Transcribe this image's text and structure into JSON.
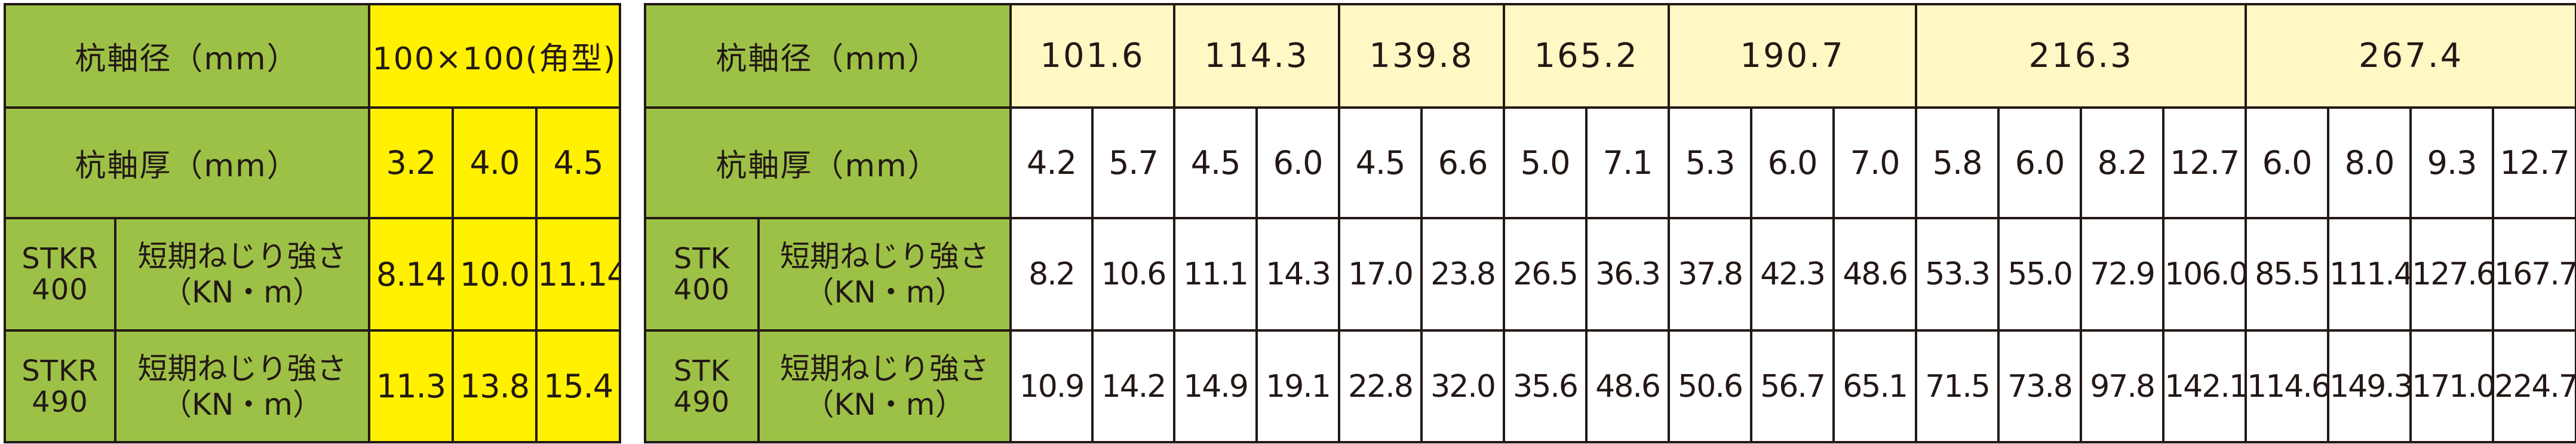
{
  "left_table": {
    "diameter_header": "杭軸径（mm）",
    "diameter_value": "100×100(角型)",
    "thickness_header": "杭軸厚（mm）",
    "thicknesses": [
      "3.2",
      "4.0",
      "4.5"
    ],
    "rows": [
      {
        "grade_line1": "STKR",
        "grade_line2": "400",
        "torsion_line1": "短期ねじり強さ",
        "torsion_line2": "（KN・m）",
        "values": [
          "8.14",
          "10.0",
          "11.14"
        ]
      },
      {
        "grade_line1": "STKR",
        "grade_line2": "490",
        "torsion_line1": "短期ねじり強さ",
        "torsion_line2": "（KN・m）",
        "values": [
          "11.3",
          "13.8",
          "15.4"
        ]
      }
    ]
  },
  "right_table": {
    "diameter_header": "杭軸径（mm）",
    "diameters": [
      "101.6",
      "114.3",
      "139.8",
      "165.2",
      "190.7",
      "216.3",
      "267.4"
    ],
    "thickness_header": "杭軸厚（mm）",
    "thicknesses": [
      "4.2",
      "5.7",
      "4.5",
      "6.0",
      "4.5",
      "6.6",
      "5.0",
      "7.1",
      "5.3",
      "6.0",
      "7.0",
      "5.8",
      "6.0",
      "8.2",
      "12.7",
      "6.0",
      "8.0",
      "9.3",
      "12.7"
    ],
    "rows": [
      {
        "grade_line1": "STK",
        "grade_line2": "400",
        "torsion_line1": "短期ねじり強さ",
        "torsion_line2": "（KN・m）",
        "values": [
          "8.2",
          "10.6",
          "11.1",
          "14.3",
          "17.0",
          "23.8",
          "26.5",
          "36.3",
          "37.8",
          "42.3",
          "48.6",
          "53.3",
          "55.0",
          "72.9",
          "106.0",
          "85.5",
          "111.4",
          "127.6",
          "167.7"
        ]
      },
      {
        "grade_line1": "STK",
        "grade_line2": "490",
        "torsion_line1": "短期ねじり強さ",
        "torsion_line2": "（KN・m）",
        "values": [
          "10.9",
          "14.2",
          "14.9",
          "19.1",
          "22.8",
          "32.0",
          "35.6",
          "48.6",
          "50.6",
          "56.7",
          "65.1",
          "71.5",
          "73.8",
          "97.8",
          "142.1",
          "114.6",
          "149.3",
          "171.0",
          "224.7"
        ]
      }
    ]
  },
  "colors": {
    "header_green": "#9dc146",
    "highlight_yellow": "#fff100",
    "cream": "#fff8c4",
    "border": "#231815"
  }
}
